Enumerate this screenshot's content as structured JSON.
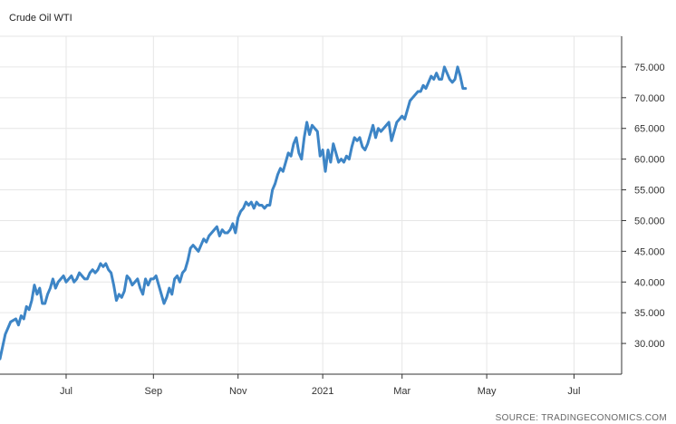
{
  "title": "Crude Oil WTI",
  "source": "SOURCE: TRADINGECONOMICS.COM",
  "chart_data": {
    "type": "line",
    "series": [
      {
        "color": "#3d85c6",
        "points": [
          [
            0,
            27.5
          ],
          [
            2,
            31.5
          ],
          [
            4,
            33.5
          ],
          [
            6,
            34.0
          ],
          [
            7,
            33.0
          ],
          [
            8,
            34.5
          ],
          [
            9,
            34.0
          ],
          [
            10,
            36.0
          ],
          [
            11,
            35.5
          ],
          [
            12,
            37.0
          ],
          [
            13,
            39.5
          ],
          [
            14,
            38.0
          ],
          [
            15,
            39.0
          ],
          [
            16,
            36.5
          ],
          [
            17,
            36.5
          ],
          [
            18,
            38.0
          ],
          [
            19,
            39.0
          ],
          [
            20,
            40.5
          ],
          [
            21,
            39.0
          ],
          [
            22,
            40.0
          ],
          [
            24,
            41.0
          ],
          [
            25,
            40.0
          ],
          [
            26,
            40.5
          ],
          [
            27,
            41.0
          ],
          [
            28,
            40.0
          ],
          [
            29,
            40.5
          ],
          [
            30,
            41.5
          ],
          [
            31,
            41.0
          ],
          [
            32,
            40.5
          ],
          [
            33,
            40.5
          ],
          [
            34,
            41.5
          ],
          [
            35,
            42.0
          ],
          [
            36,
            41.5
          ],
          [
            37,
            42.0
          ],
          [
            38,
            43.0
          ],
          [
            39,
            42.5
          ],
          [
            40,
            43.0
          ],
          [
            41,
            42.0
          ],
          [
            42,
            41.5
          ],
          [
            43,
            39.5
          ],
          [
            44,
            37.0
          ],
          [
            45,
            38.0
          ],
          [
            46,
            37.5
          ],
          [
            47,
            38.5
          ],
          [
            48,
            41.0
          ],
          [
            49,
            40.5
          ],
          [
            50,
            39.5
          ],
          [
            51,
            40.0
          ],
          [
            52,
            40.5
          ],
          [
            53,
            39.0
          ],
          [
            54,
            38.0
          ],
          [
            55,
            40.5
          ],
          [
            56,
            39.5
          ],
          [
            57,
            40.5
          ],
          [
            58,
            40.5
          ],
          [
            59,
            41.0
          ],
          [
            60,
            39.5
          ],
          [
            61,
            38.0
          ],
          [
            62,
            36.5
          ],
          [
            63,
            37.5
          ],
          [
            64,
            39.0
          ],
          [
            65,
            38.0
          ],
          [
            66,
            40.5
          ],
          [
            67,
            41.0
          ],
          [
            68,
            40.0
          ],
          [
            69,
            41.5
          ],
          [
            70,
            42.0
          ],
          [
            71,
            43.5
          ],
          [
            72,
            45.5
          ],
          [
            73,
            46.0
          ],
          [
            74,
            45.5
          ],
          [
            75,
            45.0
          ],
          [
            76,
            46.0
          ],
          [
            77,
            47.0
          ],
          [
            78,
            46.5
          ],
          [
            79,
            47.5
          ],
          [
            80,
            48.0
          ],
          [
            81,
            48.5
          ],
          [
            82,
            49.0
          ],
          [
            83,
            47.5
          ],
          [
            84,
            48.5
          ],
          [
            85,
            48.0
          ],
          [
            86,
            48.0
          ],
          [
            87,
            48.5
          ],
          [
            88,
            49.5
          ],
          [
            89,
            48.0
          ],
          [
            90,
            50.5
          ],
          [
            91,
            51.5
          ],
          [
            92,
            52.0
          ],
          [
            93,
            53.0
          ],
          [
            94,
            52.5
          ],
          [
            95,
            53.0
          ],
          [
            96,
            52.0
          ],
          [
            97,
            53.0
          ],
          [
            98,
            52.5
          ],
          [
            99,
            52.5
          ],
          [
            100,
            52.0
          ],
          [
            101,
            52.5
          ],
          [
            102,
            52.5
          ],
          [
            103,
            55.0
          ],
          [
            104,
            56.0
          ],
          [
            105,
            57.5
          ],
          [
            106,
            58.5
          ],
          [
            107,
            58.0
          ],
          [
            108,
            59.5
          ],
          [
            109,
            61.0
          ],
          [
            110,
            60.5
          ],
          [
            111,
            62.5
          ],
          [
            112,
            63.5
          ],
          [
            113,
            61.0
          ],
          [
            114,
            60.0
          ],
          [
            115,
            63.5
          ],
          [
            116,
            66.0
          ],
          [
            117,
            64.0
          ],
          [
            118,
            65.5
          ],
          [
            119,
            65.0
          ],
          [
            120,
            64.5
          ],
          [
            121,
            60.5
          ],
          [
            122,
            61.5
          ],
          [
            123,
            58.0
          ],
          [
            124,
            61.5
          ],
          [
            125,
            59.5
          ],
          [
            126,
            62.5
          ],
          [
            127,
            61.0
          ],
          [
            128,
            59.5
          ],
          [
            129,
            60.0
          ],
          [
            130,
            59.5
          ],
          [
            131,
            60.5
          ],
          [
            132,
            60.0
          ],
          [
            133,
            62.0
          ],
          [
            134,
            63.5
          ],
          [
            135,
            63.0
          ],
          [
            136,
            63.5
          ],
          [
            137,
            62.0
          ],
          [
            138,
            61.5
          ],
          [
            139,
            62.5
          ],
          [
            140,
            64.0
          ],
          [
            141,
            65.5
          ],
          [
            142,
            63.5
          ],
          [
            143,
            65.0
          ],
          [
            144,
            64.5
          ],
          [
            145,
            65.0
          ],
          [
            146,
            65.5
          ],
          [
            147,
            66.0
          ],
          [
            148,
            63.0
          ],
          [
            149,
            64.5
          ],
          [
            150,
            66.0
          ],
          [
            151,
            66.5
          ],
          [
            152,
            67.0
          ],
          [
            153,
            66.5
          ],
          [
            154,
            68.0
          ],
          [
            155,
            69.5
          ],
          [
            156,
            70.0
          ],
          [
            157,
            70.5
          ],
          [
            158,
            71.0
          ],
          [
            159,
            71.0
          ],
          [
            160,
            72.0
          ],
          [
            161,
            71.5
          ],
          [
            162,
            72.5
          ],
          [
            163,
            73.5
          ],
          [
            164,
            73.0
          ],
          [
            165,
            74.0
          ],
          [
            166,
            73.0
          ],
          [
            167,
            73.0
          ],
          [
            168,
            75.0
          ],
          [
            169,
            74.0
          ],
          [
            170,
            73.0
          ],
          [
            171,
            72.5
          ],
          [
            172,
            73.0
          ],
          [
            173,
            75.0
          ],
          [
            174,
            73.5
          ],
          [
            175,
            71.5
          ],
          [
            176,
            71.5
          ]
        ]
      }
    ],
    "x_ticks": [
      {
        "label": "Jul",
        "x": 25
      },
      {
        "label": "Sep",
        "x": 58
      },
      {
        "label": "Nov",
        "x": 90
      },
      {
        "label": "2021",
        "x": 122
      },
      {
        "label": "Mar",
        "x": 152
      },
      {
        "label": "May",
        "x": 184
      },
      {
        "label": "Jul",
        "x": 217
      }
    ],
    "xlim": [
      0,
      235
    ],
    "y_ticks": [
      "30.000",
      "35.000",
      "40.000",
      "45.000",
      "50.000",
      "55.000",
      "60.000",
      "65.000",
      "70.000",
      "75.000"
    ],
    "ylim": [
      25,
      80
    ],
    "grid": true,
    "y_axis_side": "right"
  }
}
